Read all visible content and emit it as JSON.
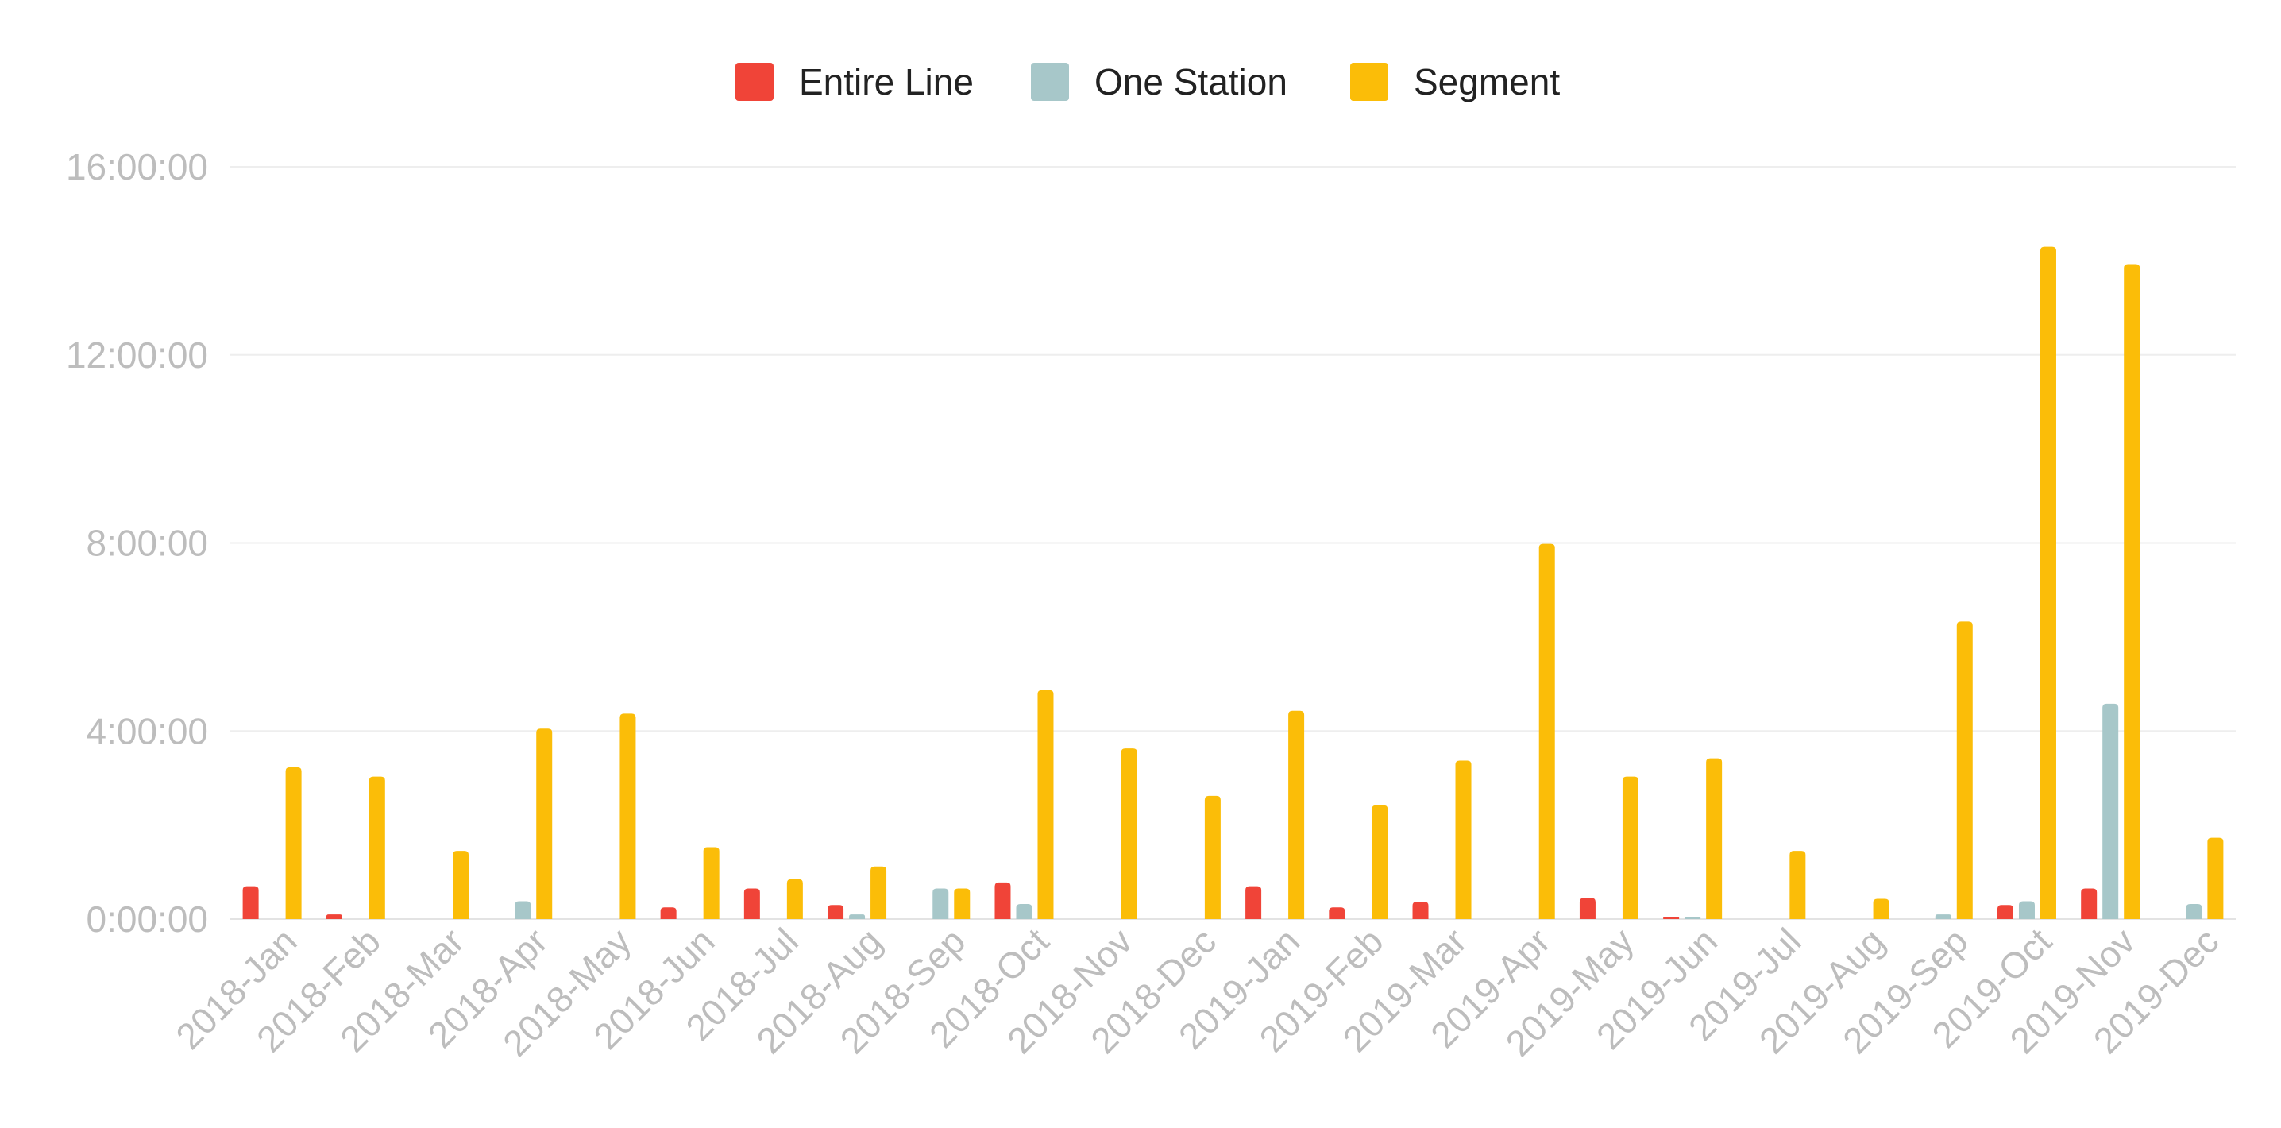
{
  "chart_data": {
    "type": "bar",
    "title": "",
    "xlabel": "",
    "ylabel": "",
    "y_unit": "hours",
    "ylim": [
      0,
      16
    ],
    "y_ticks": [
      {
        "value": 0,
        "label": "0:00:00"
      },
      {
        "value": 4,
        "label": "4:00:00"
      },
      {
        "value": 8,
        "label": "8:00:00"
      },
      {
        "value": 12,
        "label": "12:00:00"
      },
      {
        "value": 16,
        "label": "16:00:00"
      }
    ],
    "grid": true,
    "legend_position": "top-center",
    "categories": [
      "2018-Jan",
      "2018-Feb",
      "2018-Mar",
      "2018-Apr",
      "2018-May",
      "2018-Jun",
      "2018-Jul",
      "2018-Aug",
      "2018-Sep",
      "2018-Oct",
      "2018-Nov",
      "2018-Dec",
      "2019-Jan",
      "2019-Feb",
      "2019-Mar",
      "2019-Apr",
      "2019-May",
      "2019-Jun",
      "2019-Jul",
      "2019-Aug",
      "2019-Sep",
      "2019-Oct",
      "2019-Nov",
      "2019-Dec"
    ],
    "series": [
      {
        "name": "Entire Line",
        "color": "#f04438",
        "values": [
          0.7,
          0.1,
          0,
          0,
          0,
          0.25,
          0.65,
          0.3,
          0,
          0.78,
          0,
          0,
          0.7,
          0.25,
          0.37,
          0,
          0.45,
          0.05,
          0,
          0,
          0,
          0.3,
          0.65,
          0
        ]
      },
      {
        "name": "One Station",
        "color": "#a7c7c9",
        "values": [
          0,
          0,
          0,
          0.38,
          0,
          0,
          0,
          0.1,
          0.65,
          0.32,
          0,
          0,
          0,
          0,
          0,
          0,
          0,
          0.05,
          0,
          0,
          0.1,
          0.38,
          4.58,
          0.32
        ]
      },
      {
        "name": "Segment",
        "color": "#fbbd08",
        "values": [
          3.23,
          3.03,
          1.45,
          4.05,
          4.37,
          1.53,
          0.85,
          1.12,
          0.65,
          4.87,
          3.63,
          2.62,
          4.43,
          2.42,
          3.37,
          7.98,
          3.03,
          3.42,
          1.45,
          0.43,
          6.33,
          14.3,
          13.93,
          1.73
        ]
      }
    ]
  }
}
